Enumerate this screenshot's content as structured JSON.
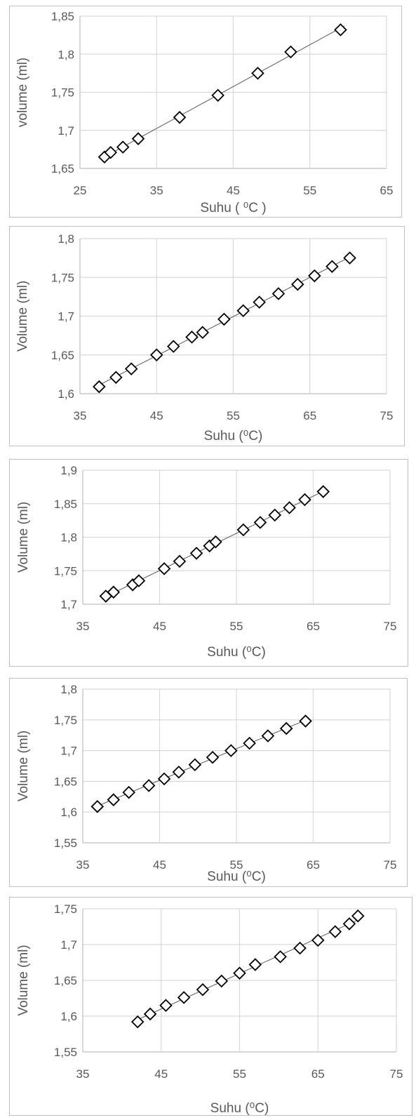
{
  "colors": {
    "axis": "#bfbfbf",
    "grid": "#d9d9d9",
    "text": "#595959",
    "marker": "#000000",
    "trendline": "#595959"
  },
  "chart_data": [
    {
      "type": "scatter",
      "xlabel": "Suhu ( ⁰C )",
      "ylabel": "volume (ml)",
      "xlim": [
        25,
        65
      ],
      "ylim": [
        1.65,
        1.85
      ],
      "xticks": [
        25,
        35,
        45,
        55,
        65
      ],
      "xtick_labels": [
        "25",
        "35",
        "45",
        "55",
        "65"
      ],
      "yticks": [
        1.65,
        1.7,
        1.75,
        1.8,
        1.85
      ],
      "ytick_labels": [
        "1,65",
        "1,7",
        "1,75",
        "1,8",
        "1,85"
      ],
      "grid": true,
      "marker": "diamond",
      "trendline": true,
      "x": [
        28.2,
        29.0,
        30.6,
        32.6,
        38.0,
        43.0,
        48.2,
        52.5,
        59.0
      ],
      "y": [
        1.665,
        1.671,
        1.678,
        1.689,
        1.717,
        1.746,
        1.775,
        1.803,
        1.832
      ]
    },
    {
      "type": "scatter",
      "xlabel": "Suhu (⁰C)",
      "ylabel": "Volume (ml)",
      "xlim": [
        35,
        75
      ],
      "ylim": [
        1.6,
        1.8
      ],
      "xticks": [
        35,
        45,
        55,
        65,
        75
      ],
      "xtick_labels": [
        "35",
        "45",
        "55",
        "65",
        "75"
      ],
      "yticks": [
        1.6,
        1.65,
        1.7,
        1.75,
        1.8
      ],
      "ytick_labels": [
        "1,6",
        "1,65",
        "1,7",
        "1,75",
        "1,8"
      ],
      "grid": true,
      "marker": "diamond",
      "trendline": true,
      "x": [
        37.5,
        39.7,
        41.7,
        45.0,
        47.2,
        49.6,
        51.0,
        53.8,
        56.3,
        58.4,
        60.9,
        63.4,
        65.6,
        67.9,
        70.2
      ],
      "y": [
        1.609,
        1.621,
        1.632,
        1.65,
        1.661,
        1.673,
        1.679,
        1.696,
        1.707,
        1.718,
        1.729,
        1.741,
        1.752,
        1.764,
        1.775
      ]
    },
    {
      "type": "scatter",
      "xlabel": "Suhu (⁰C)",
      "ylabel": "Volume (ml)",
      "xlim": [
        35,
        75
      ],
      "ylim": [
        1.7,
        1.9
      ],
      "xticks": [
        35,
        45,
        55,
        65,
        75
      ],
      "xtick_labels": [
        "35",
        "45",
        "55",
        "65",
        "75"
      ],
      "yticks": [
        1.7,
        1.75,
        1.8,
        1.85,
        1.9
      ],
      "ytick_labels": [
        "1,7",
        "1,75",
        "1,8",
        "1,85",
        "1,9"
      ],
      "grid": true,
      "marker": "diamond",
      "trendline": true,
      "x": [
        38.0,
        39.0,
        41.5,
        42.3,
        45.6,
        47.6,
        49.8,
        51.5,
        52.3,
        55.9,
        58.1,
        60.0,
        61.9,
        63.9,
        66.3
      ],
      "y": [
        1.712,
        1.718,
        1.729,
        1.735,
        1.753,
        1.764,
        1.776,
        1.787,
        1.793,
        1.811,
        1.822,
        1.833,
        1.844,
        1.856,
        1.868
      ]
    },
    {
      "type": "scatter",
      "xlabel": "Suhu (⁰C)",
      "ylabel": "Volume (ml)",
      "xlim": [
        35,
        75
      ],
      "ylim": [
        1.55,
        1.8
      ],
      "xticks": [
        35,
        45,
        55,
        65,
        75
      ],
      "xtick_labels": [
        "35",
        "45",
        "55",
        "65",
        "75"
      ],
      "yticks": [
        1.55,
        1.6,
        1.65,
        1.7,
        1.75,
        1.8
      ],
      "ytick_labels": [
        "1,55",
        "1,6",
        "1,65",
        "1,7",
        "1,75",
        "1,8"
      ],
      "grid": true,
      "marker": "diamond",
      "trendline": true,
      "x": [
        36.9,
        39.0,
        41.0,
        43.6,
        45.6,
        47.5,
        49.6,
        51.9,
        54.3,
        56.7,
        59.1,
        61.5,
        64.0
      ],
      "y": [
        1.609,
        1.62,
        1.632,
        1.643,
        1.654,
        1.665,
        1.677,
        1.689,
        1.7,
        1.712,
        1.724,
        1.736,
        1.748
      ]
    },
    {
      "type": "scatter",
      "xlabel": "Suhu (⁰C)",
      "ylabel": "Volume (ml)",
      "xlim": [
        35,
        75
      ],
      "ylim": [
        1.55,
        1.75
      ],
      "xticks": [
        35,
        45,
        55,
        65,
        75
      ],
      "xtick_labels": [
        "35",
        "45",
        "55",
        "65",
        "75"
      ],
      "yticks": [
        1.55,
        1.6,
        1.65,
        1.7,
        1.75
      ],
      "ytick_labels": [
        "1,55",
        "1,6",
        "1,65",
        "1,7",
        "1,75"
      ],
      "grid": true,
      "marker": "diamond",
      "trendline": true,
      "x": [
        42.0,
        43.6,
        45.6,
        47.9,
        50.3,
        52.7,
        55.0,
        57.0,
        60.2,
        62.7,
        65.0,
        67.2,
        69.0,
        70.1
      ],
      "y": [
        1.592,
        1.603,
        1.615,
        1.626,
        1.637,
        1.649,
        1.66,
        1.672,
        1.683,
        1.695,
        1.706,
        1.718,
        1.729,
        1.74
      ]
    }
  ]
}
